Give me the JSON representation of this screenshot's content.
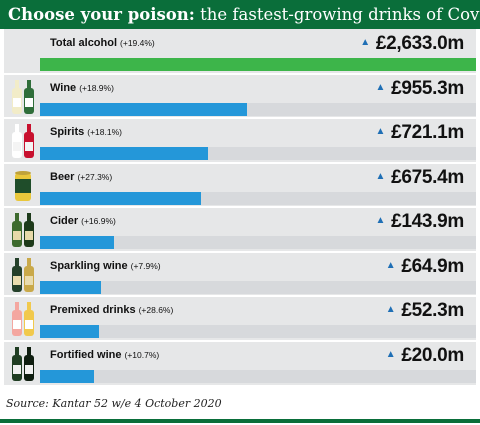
{
  "title": {
    "bold": "Choose your poison:",
    "rest": " the fastest-growing drinks of Covid"
  },
  "source": "Source: Kantar 52 w/e 4 October 2020",
  "colors": {
    "title_bg": "#0a6e3a",
    "total_bar": "#3db54a",
    "category_bar": "#2497d9",
    "arrow": "#1f6fb5",
    "panel": "#e6e7e8"
  },
  "chart_data": {
    "type": "bar",
    "orientation": "horizontal",
    "unit": "£m",
    "categories": [
      "Total alcohol",
      "Wine",
      "Spirits",
      "Beer",
      "Cider",
      "Sparkling wine",
      "Premixed drinks",
      "Fortified wine"
    ],
    "changes": [
      "(+19.4%)",
      "(+18.9%)",
      "(+18.1%)",
      "(+27.3%)",
      "(+16.9%)",
      "(+7.9%)",
      "(+28.6%)",
      "(+10.7%)"
    ],
    "values": [
      2633.0,
      955.3,
      721.1,
      675.4,
      143.9,
      64.9,
      52.3,
      20.0
    ],
    "value_labels": [
      "£2,633.0m",
      "£955.3m",
      "£721.1m",
      "£675.4m",
      "£143.9m",
      "£64.9m",
      "£52.3m",
      "£20.0m"
    ],
    "bar_fractions": [
      1.0,
      0.475,
      0.385,
      0.37,
      0.17,
      0.14,
      0.135,
      0.123
    ],
    "icons": [
      "none",
      "wine-bottles-icon",
      "spirits-bottles-icon",
      "beer-can-icon",
      "cider-bottles-icon",
      "sparkling-wine-bottles-icon",
      "premixed-drinks-bottles-icon",
      "fortified-wine-bottles-icon"
    ]
  }
}
